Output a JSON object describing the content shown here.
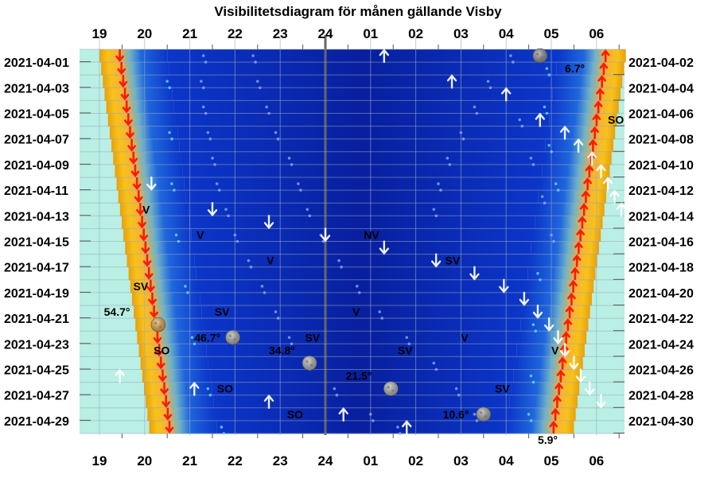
{
  "chart_data": {
    "type": "heatmap",
    "title": "Visibilitetsdiagram för månen gällande Visby",
    "x_ticks": [
      "19",
      "20",
      "21",
      "22",
      "23",
      "24",
      "01",
      "02",
      "03",
      "04",
      "05",
      "06"
    ],
    "rows_left": [
      "2021-04-01",
      "2021-04-03",
      "2021-04-05",
      "2021-04-07",
      "2021-04-09",
      "2021-04-11",
      "2021-04-13",
      "2021-04-15",
      "2021-04-17",
      "2021-04-19",
      "2021-04-21",
      "2021-04-23",
      "2021-04-25",
      "2021-04-27",
      "2021-04-29"
    ],
    "rows_right": [
      "2021-04-02",
      "2021-04-04",
      "2021-04-06",
      "2021-04-08",
      "2021-04-10",
      "2021-04-12",
      "2021-04-14",
      "2021-04-16",
      "2021-04-18",
      "2021-04-20",
      "2021-04-22",
      "2021-04-24",
      "2021-04-26",
      "2021-04-28",
      "2021-04-30"
    ],
    "sunset_hours": [
      19.45,
      20.55
    ],
    "sunrise_hours": [
      6.2,
      5.05
    ],
    "moon_events": [
      {
        "hour": 1.3,
        "day": 1,
        "kind": "up"
      },
      {
        "hour": 2.8,
        "day": 3,
        "kind": "up"
      },
      {
        "hour": 4.0,
        "day": 4,
        "kind": "up"
      },
      {
        "hour": 4.75,
        "day": 6,
        "kind": "up"
      },
      {
        "hour": 5.3,
        "day": 7,
        "kind": "up"
      },
      {
        "hour": 5.6,
        "day": 8,
        "kind": "up"
      },
      {
        "hour": 5.9,
        "day": 9,
        "kind": "up"
      },
      {
        "hour": 6.1,
        "day": 10,
        "kind": "up"
      },
      {
        "hour": 6.25,
        "day": 11,
        "kind": "up"
      },
      {
        "hour": 6.4,
        "day": 12,
        "kind": "up"
      },
      {
        "hour": 6.55,
        "day": 13,
        "kind": "up"
      },
      {
        "hour": 20.15,
        "day": 11,
        "kind": "down"
      },
      {
        "hour": 21.5,
        "day": 13,
        "kind": "down"
      },
      {
        "hour": 22.75,
        "day": 14,
        "kind": "down"
      },
      {
        "hour": 24.0,
        "day": 15,
        "kind": "down"
      },
      {
        "hour": 1.3,
        "day": 16,
        "kind": "down"
      },
      {
        "hour": 2.45,
        "day": 17,
        "kind": "down"
      },
      {
        "hour": 3.3,
        "day": 18,
        "kind": "down"
      },
      {
        "hour": 3.95,
        "day": 19,
        "kind": "down"
      },
      {
        "hour": 4.4,
        "day": 20,
        "kind": "down"
      },
      {
        "hour": 4.7,
        "day": 21,
        "kind": "down"
      },
      {
        "hour": 4.95,
        "day": 22,
        "kind": "down"
      },
      {
        "hour": 5.15,
        "day": 23,
        "kind": "down"
      },
      {
        "hour": 5.3,
        "day": 24,
        "kind": "down"
      },
      {
        "hour": 5.5,
        "day": 25,
        "kind": "down"
      },
      {
        "hour": 5.65,
        "day": 26,
        "kind": "down"
      },
      {
        "hour": 5.85,
        "day": 27,
        "kind": "down"
      },
      {
        "hour": 6.1,
        "day": 28,
        "kind": "down"
      },
      {
        "hour": 19.45,
        "day": 26,
        "kind": "up"
      },
      {
        "hour": 21.1,
        "day": 27,
        "kind": "up"
      },
      {
        "hour": 22.75,
        "day": 28,
        "kind": "up"
      },
      {
        "hour": 0.4,
        "day": 29,
        "kind": "up"
      },
      {
        "hour": 1.8,
        "day": 30,
        "kind": "up"
      }
    ],
    "moon_images": [
      {
        "hour": 4.75,
        "day": 1,
        "color": "#8a8a8a"
      },
      {
        "hour": 20.3,
        "day": 22,
        "color": "#e3a23a"
      },
      {
        "hour": 21.95,
        "day": 23,
        "color": "#a8a8a8"
      },
      {
        "hour": 23.65,
        "day": 25,
        "color": "#b0b0b0"
      },
      {
        "hour": 1.45,
        "day": 27,
        "color": "#b0b0b0"
      },
      {
        "hour": 3.5,
        "day": 29,
        "color": "#a0a0a0"
      }
    ],
    "annotations": [
      {
        "text": "6.7°",
        "hour": 5.3,
        "day": 2
      },
      {
        "text": "SO",
        "hour": 6.25,
        "day": 6
      },
      {
        "text": "V",
        "hour": 19.95,
        "day": 13
      },
      {
        "text": "V",
        "hour": 21.15,
        "day": 15
      },
      {
        "text": "NV",
        "hour": 0.85,
        "day": 15
      },
      {
        "text": "V",
        "hour": 22.7,
        "day": 17
      },
      {
        "text": "SV",
        "hour": 2.65,
        "day": 17
      },
      {
        "text": "SV",
        "hour": 19.75,
        "day": 19
      },
      {
        "text": "54.7°",
        "hour": 19.1,
        "day": 21
      },
      {
        "text": "SV",
        "hour": 21.55,
        "day": 21
      },
      {
        "text": "V",
        "hour": 0.6,
        "day": 21
      },
      {
        "text": "46.7°",
        "hour": 21.1,
        "day": 23
      },
      {
        "text": "SV",
        "hour": 23.55,
        "day": 23
      },
      {
        "text": "V",
        "hour": 3.0,
        "day": 23
      },
      {
        "text": "34.8°",
        "hour": 22.75,
        "day": 24
      },
      {
        "text": "SO",
        "hour": 20.2,
        "day": 24
      },
      {
        "text": "SV",
        "hour": 1.6,
        "day": 24
      },
      {
        "text": "V",
        "hour": 5.0,
        "day": 24
      },
      {
        "text": "21.5°",
        "hour": 0.45,
        "day": 26
      },
      {
        "text": "SO",
        "hour": 21.6,
        "day": 27
      },
      {
        "text": "SV",
        "hour": 3.75,
        "day": 27
      },
      {
        "text": "10.6°",
        "hour": 2.6,
        "day": 29
      },
      {
        "text": "SO",
        "hour": 23.15,
        "day": 29
      },
      {
        "text": "5.9°",
        "hour": 4.7,
        "day": 31
      }
    ]
  }
}
